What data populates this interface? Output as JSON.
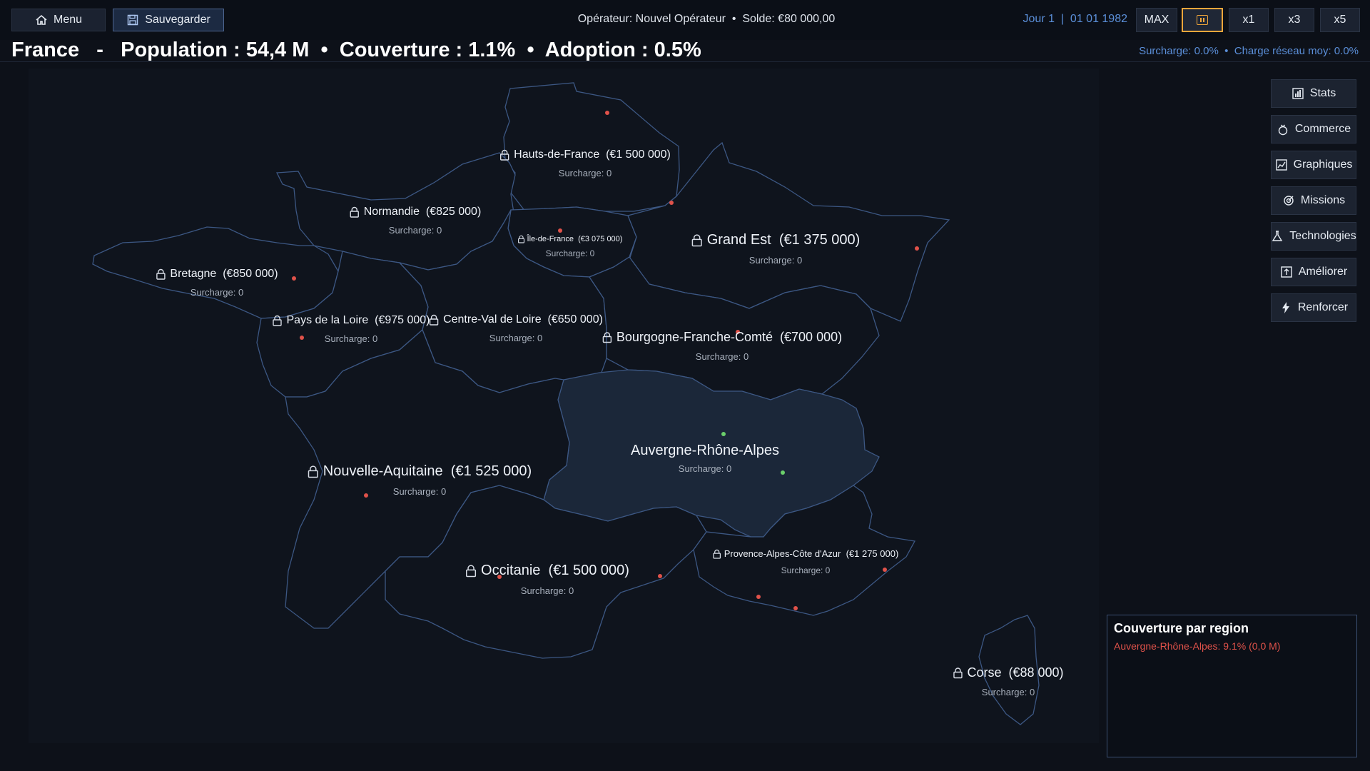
{
  "topbar": {
    "menu_label": "Menu",
    "save_label": "Sauvegarder",
    "operator_label": "Opérateur",
    "operator_name": "Nouvel Opérateur",
    "balance_label": "Solde",
    "balance": "€80 000,00",
    "day": "Jour 1",
    "date": "01 01 1982",
    "speed_max": "MAX",
    "speed_x1": "x1",
    "speed_x3": "x3",
    "speed_x5": "x5",
    "active_speed": "pause"
  },
  "header": {
    "country": "France",
    "population": "Population : 54,4 M",
    "coverage": "Couverture : 1.1%",
    "adoption": "Adoption : 0.5%",
    "surcharge": "Surcharge: 0.0%",
    "network_load": "Charge réseau moy: 0.0%"
  },
  "regions": {
    "hauts_de_france": {
      "name": "Hauts-de-France",
      "price": "(€1 500 000)",
      "surcharge": "Surcharge: 0",
      "locked": true
    },
    "normandie": {
      "name": "Normandie",
      "price": "(€825 000)",
      "surcharge": "Surcharge: 0",
      "locked": true
    },
    "ile_de_france": {
      "name": "Île-de-France",
      "price": "(€3 075 000)",
      "surcharge": "Surcharge: 0",
      "locked": true
    },
    "grand_est": {
      "name": "Grand Est",
      "price": "(€1 375 000)",
      "surcharge": "Surcharge: 0",
      "locked": true
    },
    "bretagne": {
      "name": "Bretagne",
      "price": "(€850 000)",
      "surcharge": "Surcharge: 0",
      "locked": true
    },
    "pays_de_la_loire": {
      "name": "Pays de la Loire",
      "price": "(€975 000)",
      "surcharge": "Surcharge: 0",
      "locked": true
    },
    "centre_val_de_loire": {
      "name": "Centre-Val de Loire",
      "price": "(€650 000)",
      "surcharge": "Surcharge: 0",
      "locked": true
    },
    "bourgogne_franche_comte": {
      "name": "Bourgogne-Franche-Comté",
      "price": "(€700 000)",
      "surcharge": "Surcharge: 0",
      "locked": true
    },
    "auvergne_rhone_alpes": {
      "name": "Auvergne-Rhône-Alpes",
      "surcharge": "Surcharge: 0",
      "locked": false
    },
    "nouvelle_aquitaine": {
      "name": "Nouvelle-Aquitaine",
      "price": "(€1 525 000)",
      "surcharge": "Surcharge: 0",
      "locked": true
    },
    "occitanie": {
      "name": "Occitanie",
      "price": "(€1 500 000)",
      "surcharge": "Surcharge: 0",
      "locked": true
    },
    "paca": {
      "name": "Provence-Alpes-Côte d'Azur",
      "price": "(€1 275 000)",
      "surcharge": "Surcharge: 0",
      "locked": true
    },
    "corse": {
      "name": "Corse",
      "price": "(€88 000)",
      "surcharge": "Surcharge: 0",
      "locked": true
    }
  },
  "right_menu": {
    "stats": "Stats",
    "commerce": "Commerce",
    "graphiques": "Graphiques",
    "missions": "Missions",
    "technologies": "Technologies",
    "ameliorer": "Améliorer",
    "renforcer": "Renforcer"
  },
  "coverage_panel": {
    "title": "Couverture par region",
    "rows": [
      "Auvergne-Rhône-Alpes: 9.1% (0,0 M)"
    ]
  },
  "colors": {
    "accent_blue": "#5b8fd9",
    "pause_orange": "#f0a63b",
    "city_red": "#e0524a",
    "city_green": "#6bcf6b",
    "region_border": "#3c5783",
    "active_region": "#1b2739"
  }
}
